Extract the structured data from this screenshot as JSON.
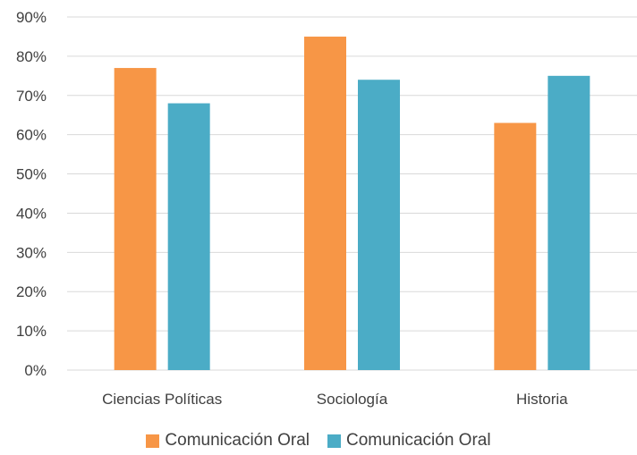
{
  "chart_data": {
    "type": "bar",
    "categories": [
      "Ciencias Políticas",
      "Sociología",
      "Historia"
    ],
    "series": [
      {
        "name": "Comunicación Oral",
        "values": [
          77,
          85,
          63
        ],
        "color": "#F79646"
      },
      {
        "name": "Comunicación Oral",
        "values": [
          68,
          74,
          75
        ],
        "color": "#4BACC6"
      }
    ],
    "ylim": [
      0,
      90
    ],
    "yticks": [
      "0%",
      "10%",
      "20%",
      "30%",
      "40%",
      "50%",
      "60%",
      "70%",
      "80%",
      "90%"
    ],
    "gridlines": true,
    "legend_position": "bottom",
    "title": "",
    "xlabel": "",
    "ylabel": ""
  }
}
